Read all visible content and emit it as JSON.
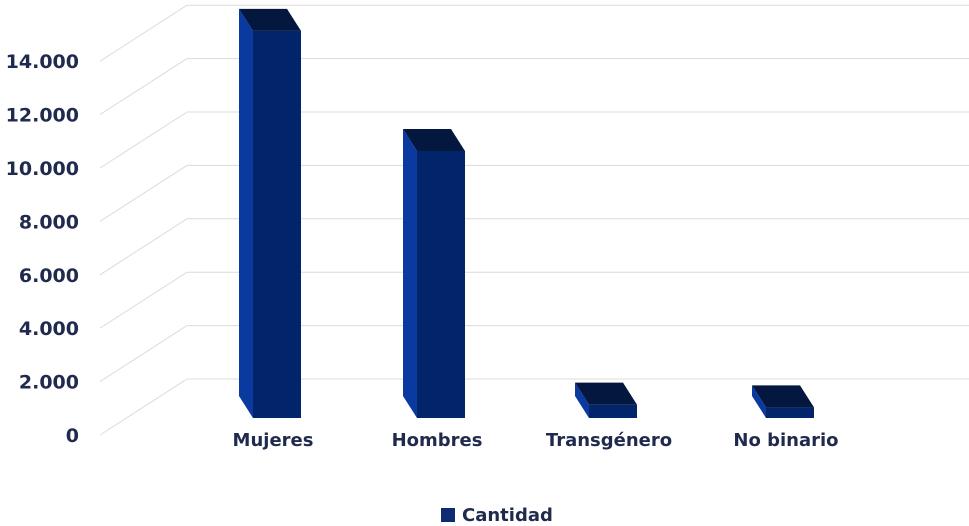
{
  "chart_data": {
    "type": "bar",
    "three_d": true,
    "categories": [
      "Mujeres",
      "Hombres",
      "Transgénero",
      "No binario"
    ],
    "series": [
      {
        "name": "Cantidad",
        "values": [
          14500,
          10000,
          500,
          400
        ]
      }
    ],
    "y_ticks": [
      "0",
      "2.000",
      "4.000",
      "6.000",
      "8.000",
      "10.000",
      "12.000",
      "14.000"
    ],
    "ylim": [
      0,
      14000
    ],
    "grid": true,
    "legend": "bottom",
    "colors": {
      "bar_front": "#01246a",
      "bar_side": "#0a3aa0",
      "bar_top": "#04173f",
      "grid": "#dcdcdc"
    }
  }
}
